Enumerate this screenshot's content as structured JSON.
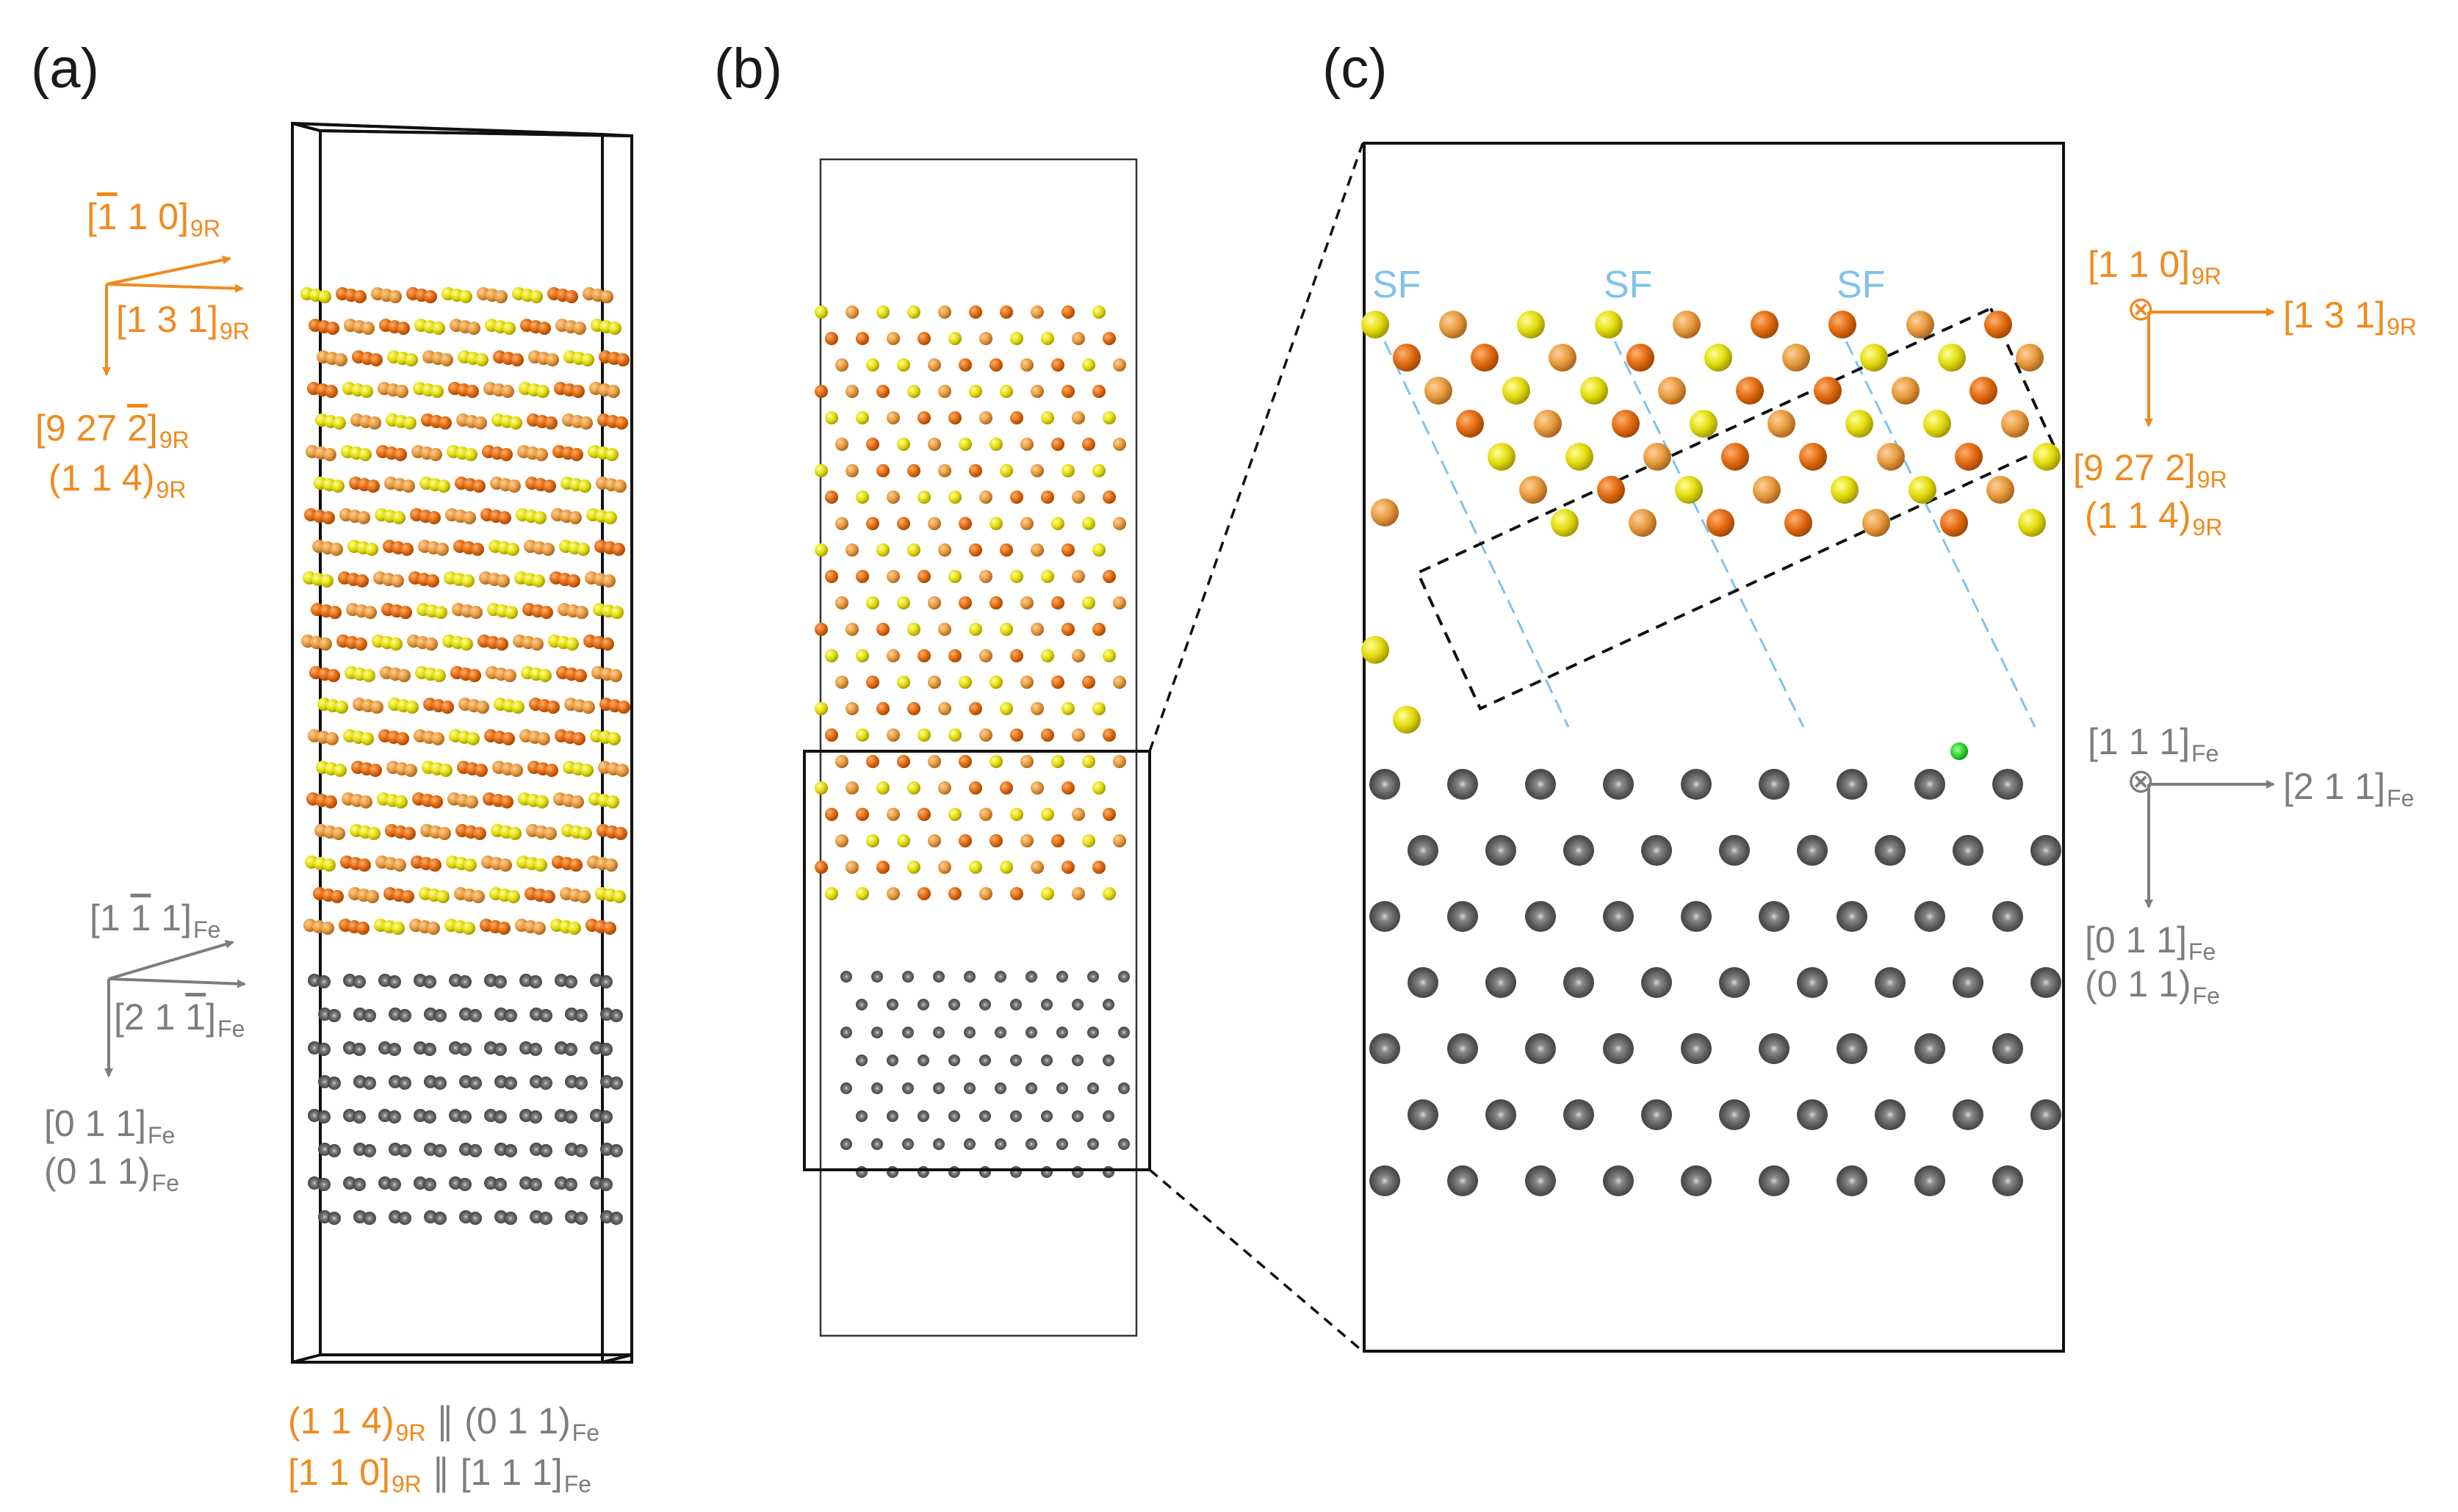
{
  "panels": {
    "a": {
      "label": "(a)"
    },
    "b": {
      "label": "(b)"
    },
    "c": {
      "label": "(c)"
    }
  },
  "colors": {
    "atom_orange": "#e26a10",
    "atom_light_orange": "#e69a3c",
    "atom_yellow": "#e3db0b",
    "atom_gray": "#5a5a5a",
    "interstitial_green": "#22cc22",
    "stacking_fault_line": "#7ec3ea",
    "label_orange": "#f08a1e",
    "label_gray": "#7d7d7d"
  },
  "panel_a": {
    "orange_axes": {
      "dir1": {
        "open": "[",
        "ob1": "1",
        "rest": " 1 0]",
        "sub": "9R"
      },
      "dir2": {
        "text": "[1 3 1]",
        "sub": "9R"
      },
      "dir3": {
        "pre": "[9 27 ",
        "ob": "2",
        "post": "]",
        "sub": "9R"
      },
      "plane3": {
        "text": "(1 1 4)",
        "sub": "9R"
      }
    },
    "gray_axes": {
      "dir1": {
        "pre": "[1 ",
        "ob": "1",
        "post": " 1]",
        "sub": "Fe"
      },
      "dir2": {
        "pre": "[2 1 ",
        "ob": "1",
        "post": "]",
        "sub": "Fe"
      },
      "dir3": {
        "text": "[0 1 1]",
        "sub": "Fe"
      },
      "plane3": {
        "text": "(0 1 1)",
        "sub": "Fe"
      }
    },
    "relation1": {
      "left": "(1 1 4)",
      "left_sub": "9R",
      "sep": " ∥ ",
      "right": "(0 1 1)",
      "right_sub": "Fe"
    },
    "relation2": {
      "left": "[1 1 0]",
      "left_sub": "9R",
      "sep": " ∥ ",
      "right": "[1 1 1]",
      "right_sub": "Fe"
    }
  },
  "panel_c": {
    "stacking_fault_labels": [
      "SF",
      "SF",
      "SF"
    ],
    "orange_axes": {
      "out_of_plane": {
        "text": "[1 1 0]",
        "sub": "9R"
      },
      "right": {
        "text": "[1 3 1]",
        "sub": "9R"
      },
      "down": {
        "text": "[9 27 2]",
        "sub": "9R"
      },
      "plane": {
        "text": "(1 1 4)",
        "sub": "9R"
      },
      "out_symbol": "⊗"
    },
    "gray_axes": {
      "out_of_plane": {
        "text": "[1 1 1]",
        "sub": "Fe"
      },
      "right": {
        "text": "[2 1 1]",
        "sub": "Fe"
      },
      "down": {
        "text": "[0 1 1]",
        "sub": "Fe"
      },
      "plane": {
        "text": "(0 1 1)",
        "sub": "Fe"
      },
      "out_symbol": "⊗"
    }
  }
}
